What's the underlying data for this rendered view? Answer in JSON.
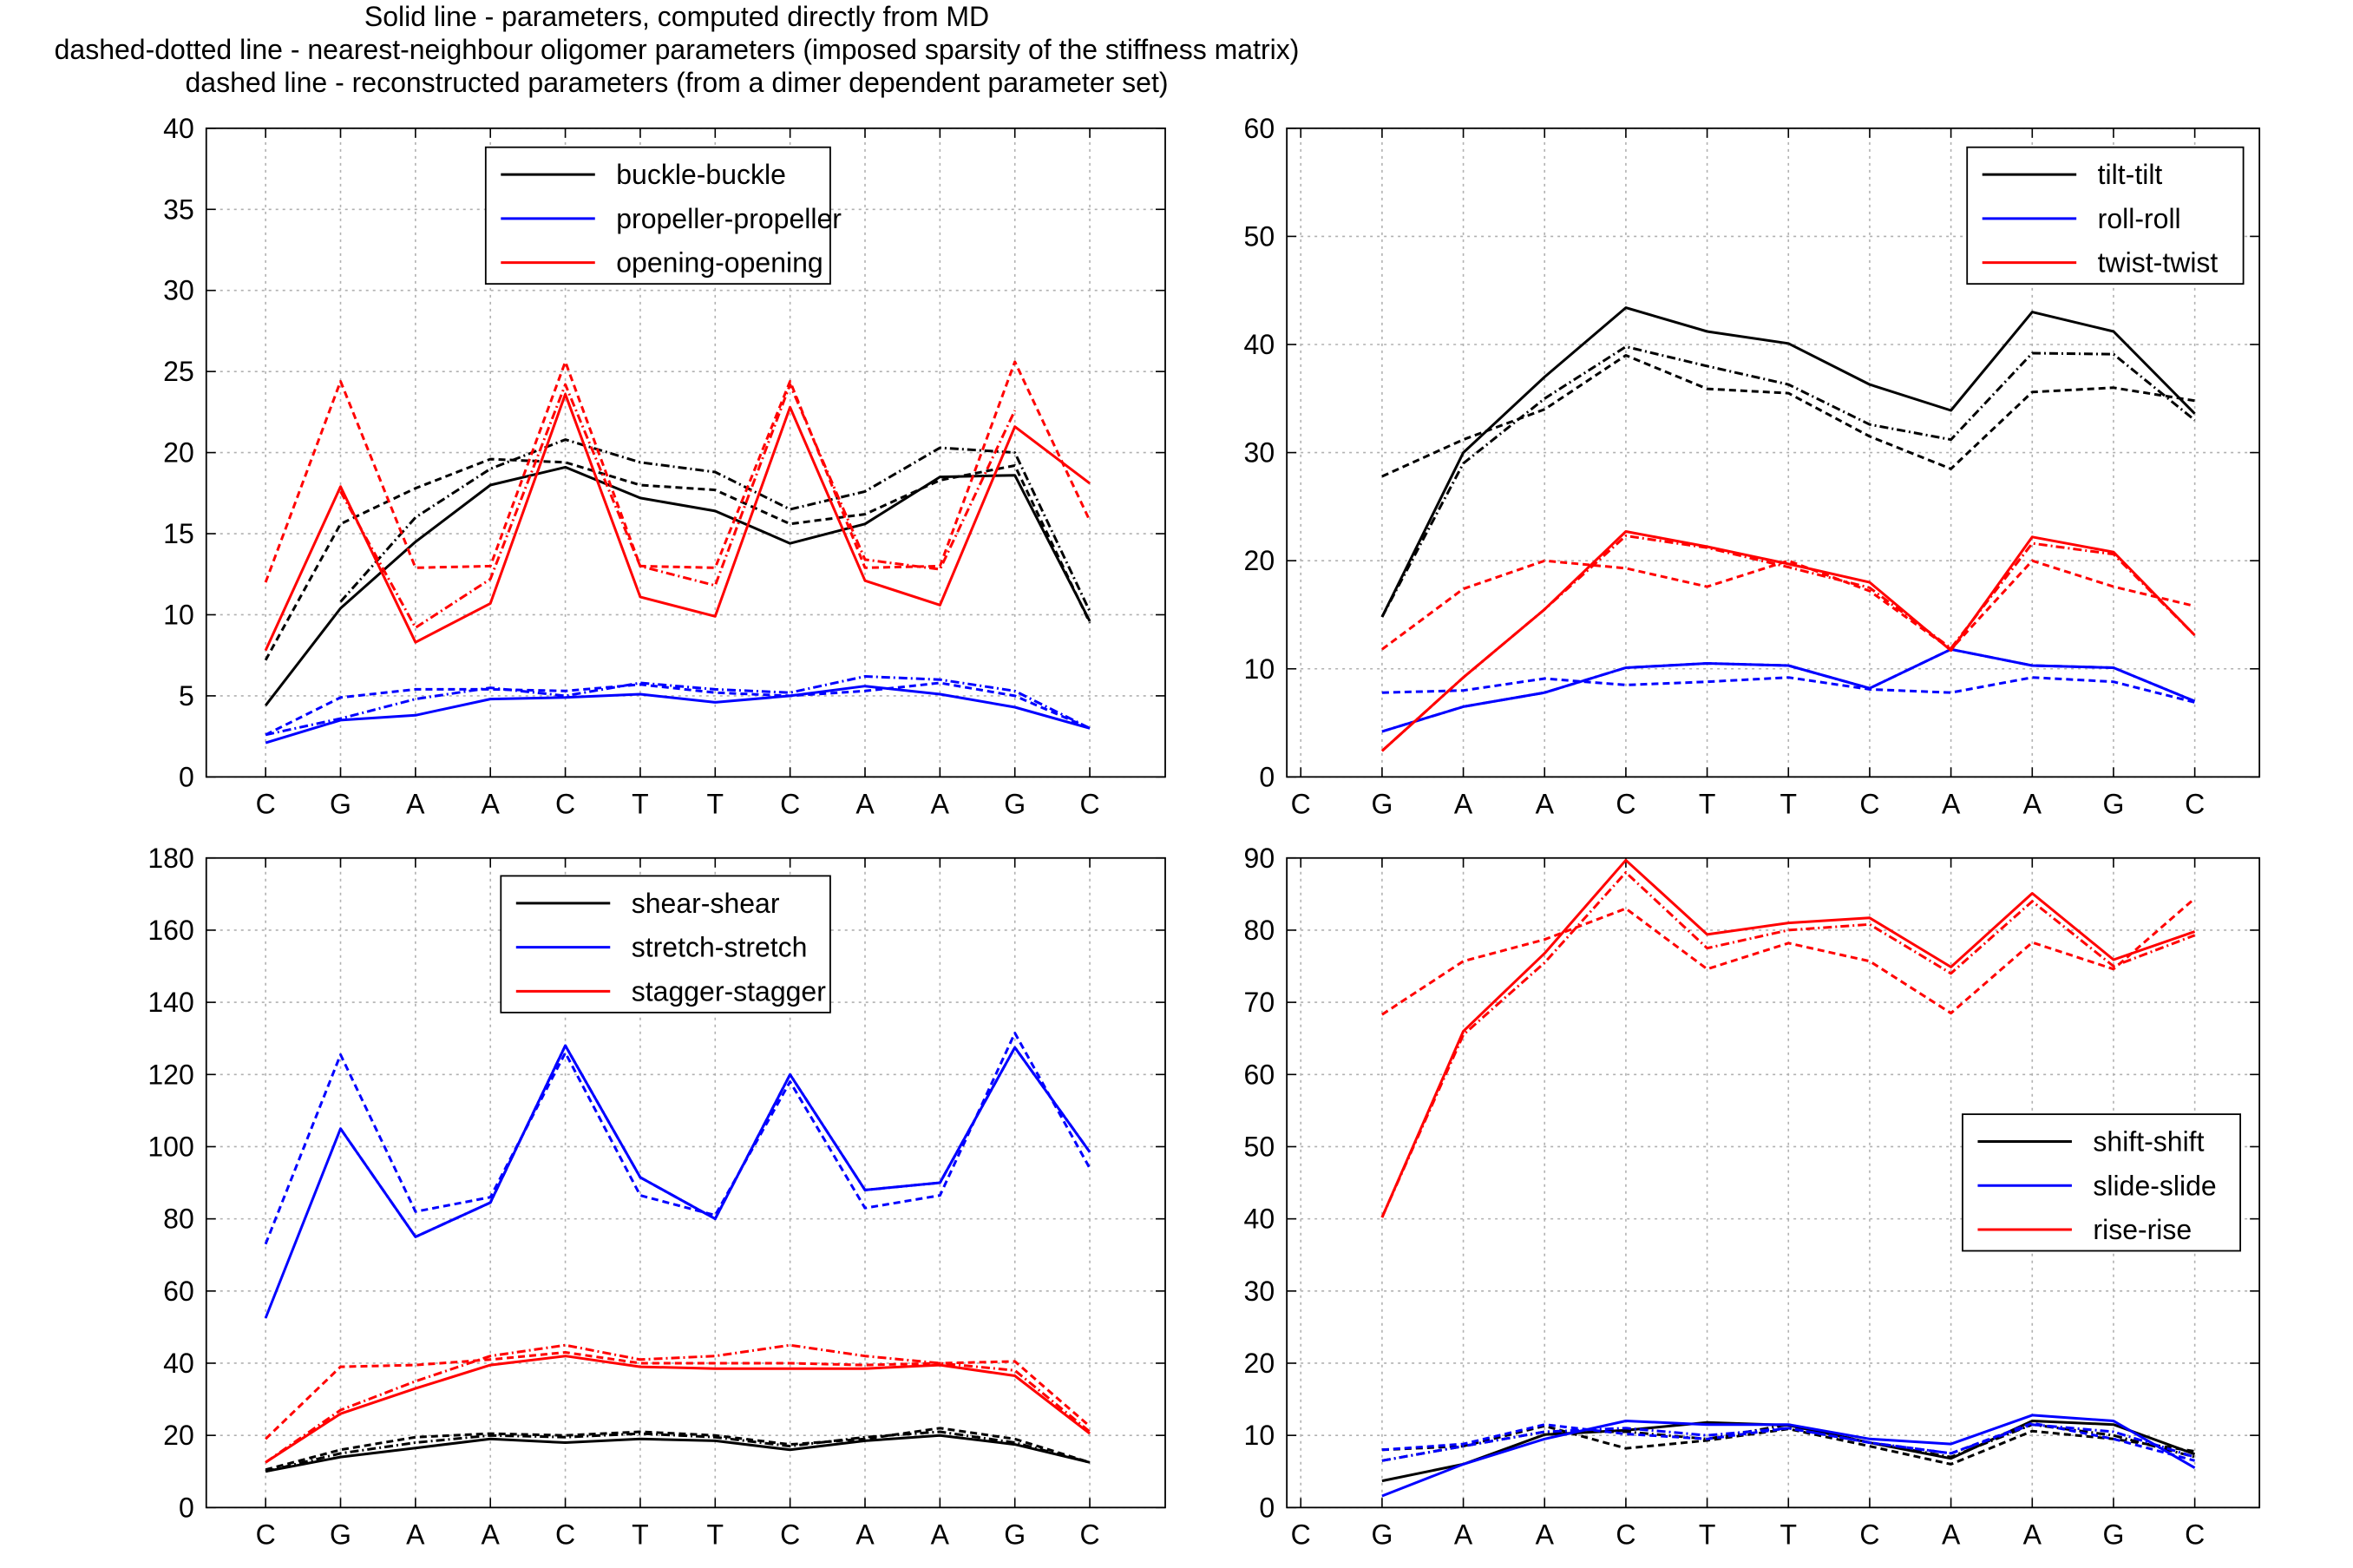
{
  "header": {
    "lines": [
      "Solid line - parameters, computed directly from MD",
      "dashed-dotted line - nearest-neighbour oligomer parameters (imposed sparsity of the stiffness matrix)",
      "dashed line - reconstructed parameters (from a dimer dependent parameter set)"
    ]
  },
  "style": {
    "line_styles": {
      "md": "solid",
      "oligomer": "dashdot",
      "reconstructed": "dashed"
    },
    "colors": {
      "black": "#000000",
      "blue": "#0000ff",
      "red": "#ff0000",
      "grid": "#b0b0b0"
    }
  },
  "chart_data": [
    {
      "type": "line",
      "title": "",
      "xlabel": "",
      "ylabel": "",
      "categories": [
        "C",
        "G",
        "A",
        "A",
        "C",
        "T",
        "T",
        "C",
        "A",
        "A",
        "G",
        "C"
      ],
      "ylim": [
        0,
        40
      ],
      "yticks": [
        0,
        5,
        10,
        15,
        20,
        25,
        30,
        35,
        40
      ],
      "grid": true,
      "legend_placement": "top-center",
      "legend": [
        {
          "name": "buckle-buckle",
          "color": "#000000"
        },
        {
          "name": "propeller-propeller",
          "color": "#0000ff"
        },
        {
          "name": "opening-opening",
          "color": "#ff0000"
        }
      ],
      "series": [
        {
          "name": "buckle-buckle",
          "color": "#000000",
          "style": "solid",
          "values": [
            4.4,
            10.4,
            14.5,
            18.0,
            19.1,
            17.2,
            16.4,
            14.4,
            15.6,
            18.5,
            18.6,
            9.6
          ]
        },
        {
          "name": "buckle-buckle",
          "color": "#000000",
          "style": "dashdot",
          "values": [
            null,
            10.8,
            16.0,
            19.0,
            20.8,
            19.4,
            18.8,
            16.5,
            17.6,
            20.3,
            20.0,
            10.2
          ]
        },
        {
          "name": "buckle-buckle",
          "color": "#000000",
          "style": "dashed",
          "values": [
            7.2,
            15.6,
            17.8,
            19.6,
            19.4,
            18.0,
            17.7,
            15.6,
            16.2,
            18.3,
            19.2,
            9.5
          ]
        },
        {
          "name": "propeller-propeller",
          "color": "#0000ff",
          "style": "solid",
          "values": [
            2.1,
            3.5,
            3.8,
            4.8,
            4.9,
            5.1,
            4.6,
            5.0,
            5.6,
            5.1,
            4.3,
            3.0
          ]
        },
        {
          "name": "propeller-propeller",
          "color": "#0000ff",
          "style": "dashdot",
          "values": [
            2.6,
            3.6,
            4.8,
            5.5,
            5.0,
            5.8,
            5.4,
            5.2,
            6.2,
            6.0,
            5.3,
            3.0
          ]
        },
        {
          "name": "propeller-propeller",
          "color": "#0000ff",
          "style": "dashed",
          "values": [
            2.6,
            4.9,
            5.4,
            5.4,
            5.3,
            5.7,
            5.2,
            5.0,
            5.3,
            5.8,
            5.0,
            3.0
          ]
        },
        {
          "name": "opening-opening",
          "color": "#ff0000",
          "style": "solid",
          "values": [
            7.8,
            17.9,
            8.3,
            10.7,
            23.6,
            11.1,
            9.9,
            22.8,
            12.1,
            10.6,
            21.6,
            18.1
          ]
        },
        {
          "name": "opening-opening",
          "color": "#ff0000",
          "style": "dashdot",
          "values": [
            null,
            17.6,
            9.2,
            12.2,
            24.2,
            13.0,
            11.8,
            24.2,
            13.4,
            12.8,
            22.6,
            null
          ]
        },
        {
          "name": "opening-opening",
          "color": "#ff0000",
          "style": "dashed",
          "values": [
            12.0,
            24.4,
            12.9,
            13.0,
            25.6,
            13.0,
            12.9,
            24.4,
            12.9,
            13.0,
            25.6,
            15.8
          ]
        }
      ]
    },
    {
      "type": "line",
      "title": "",
      "xlabel": "",
      "ylabel": "",
      "categories": [
        "C",
        "G",
        "A",
        "A",
        "C",
        "T",
        "T",
        "C",
        "A",
        "A",
        "G",
        "C"
      ],
      "ylim": [
        0,
        60
      ],
      "yticks": [
        0,
        10,
        20,
        30,
        40,
        50,
        60
      ],
      "grid": true,
      "legend_placement": "top-right",
      "legend": [
        {
          "name": "tilt-tilt",
          "color": "#000000"
        },
        {
          "name": "roll-roll",
          "color": "#0000ff"
        },
        {
          "name": "twist-twist",
          "color": "#ff0000"
        }
      ],
      "series": [
        {
          "name": "tilt-tilt",
          "color": "#000000",
          "style": "solid",
          "values": [
            null,
            14.8,
            30.0,
            37.0,
            43.4,
            41.2,
            40.1,
            36.3,
            33.9,
            43.0,
            41.2,
            33.6
          ]
        },
        {
          "name": "tilt-tilt",
          "color": "#000000",
          "style": "dashdot",
          "values": [
            null,
            14.8,
            29.0,
            35.0,
            39.8,
            38.0,
            36.3,
            32.6,
            31.2,
            39.2,
            39.1,
            33.0
          ]
        },
        {
          "name": "tilt-tilt",
          "color": "#000000",
          "style": "dashed",
          "values": [
            null,
            27.8,
            31.2,
            34.0,
            39.0,
            35.9,
            35.5,
            31.5,
            28.5,
            35.6,
            36.0,
            34.8
          ]
        },
        {
          "name": "roll-roll",
          "color": "#0000ff",
          "style": "solid",
          "values": [
            null,
            4.2,
            6.5,
            7.8,
            10.1,
            10.5,
            10.3,
            8.2,
            11.8,
            10.3,
            10.1,
            7.0
          ]
        },
        {
          "name": "roll-roll",
          "color": "#0000ff",
          "style": "dashdot",
          "values": [
            null,
            4.2,
            6.5,
            7.8,
            10.1,
            10.5,
            10.3,
            8.2,
            11.8,
            10.3,
            10.1,
            7.0
          ]
        },
        {
          "name": "roll-roll",
          "color": "#0000ff",
          "style": "dashed",
          "values": [
            null,
            7.8,
            8.0,
            9.1,
            8.5,
            8.8,
            9.2,
            8.1,
            7.8,
            9.2,
            8.8,
            6.9
          ]
        },
        {
          "name": "twist-twist",
          "color": "#ff0000",
          "style": "solid",
          "values": [
            null,
            2.4,
            9.2,
            15.5,
            22.7,
            21.3,
            19.7,
            18.0,
            11.7,
            22.2,
            20.8,
            13.1
          ]
        },
        {
          "name": "twist-twist",
          "color": "#ff0000",
          "style": "dashdot",
          "values": [
            null,
            2.4,
            9.2,
            15.5,
            22.3,
            21.2,
            19.4,
            17.5,
            11.9,
            21.6,
            20.6,
            13.1
          ]
        },
        {
          "name": "twist-twist",
          "color": "#ff0000",
          "style": "dashed",
          "values": [
            null,
            11.8,
            17.4,
            20.0,
            19.3,
            17.6,
            20.0,
            17.2,
            11.8,
            20.0,
            17.6,
            15.8
          ]
        }
      ]
    },
    {
      "type": "line",
      "title": "",
      "xlabel": "",
      "ylabel": "",
      "categories": [
        "C",
        "G",
        "A",
        "A",
        "C",
        "T",
        "T",
        "C",
        "A",
        "A",
        "G",
        "C"
      ],
      "ylim": [
        0,
        180
      ],
      "yticks": [
        0,
        20,
        40,
        60,
        80,
        100,
        120,
        140,
        160,
        180
      ],
      "grid": true,
      "legend_placement": "top-center",
      "legend": [
        {
          "name": "shear-shear",
          "color": "#000000"
        },
        {
          "name": "stretch-stretch",
          "color": "#0000ff"
        },
        {
          "name": "stagger-stagger",
          "color": "#ff0000"
        }
      ],
      "series": [
        {
          "name": "shear-shear",
          "color": "#000000",
          "style": "solid",
          "values": [
            10,
            14,
            16.5,
            19,
            18,
            19,
            18.5,
            16,
            18.5,
            20,
            17.5,
            12.5
          ]
        },
        {
          "name": "shear-shear",
          "color": "#000000",
          "style": "dashdot",
          "values": [
            10,
            15,
            18,
            20,
            19.5,
            20.5,
            19.5,
            17,
            19.5,
            21,
            18,
            12.5
          ]
        },
        {
          "name": "shear-shear",
          "color": "#000000",
          "style": "dashed",
          "values": [
            10.5,
            16,
            19.5,
            20.5,
            20,
            21,
            20,
            17.5,
            19,
            22,
            19,
            12.5
          ]
        },
        {
          "name": "stretch-stretch",
          "color": "#0000ff",
          "style": "solid",
          "values": [
            52.5,
            105,
            75,
            84.5,
            128,
            91.5,
            80,
            120,
            88,
            90,
            127.5,
            98.5
          ]
        },
        {
          "name": "stretch-stretch",
          "color": "#0000ff",
          "style": "dashdot",
          "values": [
            null,
            105,
            75,
            84.5,
            128,
            91.5,
            80,
            120,
            88,
            90,
            127.5,
            98.5
          ]
        },
        {
          "name": "stretch-stretch",
          "color": "#0000ff",
          "style": "dashed",
          "values": [
            73,
            125.5,
            82,
            86,
            126,
            86.5,
            81,
            118,
            83,
            86.5,
            131.5,
            94
          ]
        },
        {
          "name": "stagger-stagger",
          "color": "#ff0000",
          "style": "solid",
          "values": [
            12.5,
            26,
            33,
            39.5,
            42,
            39,
            38.5,
            38.5,
            38.5,
            39.5,
            36.5,
            20.5
          ]
        },
        {
          "name": "stagger-stagger",
          "color": "#ff0000",
          "style": "dashdot",
          "values": [
            12.5,
            27,
            35,
            42,
            45,
            41,
            42,
            45,
            42,
            40,
            38,
            21
          ]
        },
        {
          "name": "stagger-stagger",
          "color": "#ff0000",
          "style": "dashed",
          "values": [
            19,
            39,
            39.5,
            41,
            43,
            40,
            40,
            40,
            39.5,
            40,
            40.5,
            22.5
          ]
        }
      ]
    },
    {
      "type": "line",
      "title": "",
      "xlabel": "",
      "ylabel": "",
      "categories": [
        "C",
        "G",
        "A",
        "A",
        "C",
        "T",
        "T",
        "C",
        "A",
        "A",
        "G",
        "C"
      ],
      "ylim": [
        0,
        90
      ],
      "yticks": [
        0,
        10,
        20,
        30,
        40,
        50,
        60,
        70,
        80,
        90
      ],
      "grid": true,
      "legend_placement": "middle-right",
      "legend": [
        {
          "name": "shift-shift",
          "color": "#000000"
        },
        {
          "name": "slide-slide",
          "color": "#0000ff"
        },
        {
          "name": "rise-rise",
          "color": "#ff0000"
        }
      ],
      "series": [
        {
          "name": "shift-shift",
          "color": "#000000",
          "style": "solid",
          "values": [
            null,
            3.7,
            6.0,
            10.1,
            10.7,
            11.8,
            11.4,
            9.0,
            6.8,
            12.0,
            11.5,
            7.4
          ]
        },
        {
          "name": "shift-shift",
          "color": "#000000",
          "style": "dashdot",
          "values": [
            null,
            6.5,
            8.5,
            10.5,
            10.5,
            9.5,
            11.5,
            9.0,
            7.0,
            11.5,
            10.0,
            7.0
          ]
        },
        {
          "name": "shift-shift",
          "color": "#000000",
          "style": "dashed",
          "values": [
            null,
            8.0,
            8.5,
            11.3,
            8.2,
            9.3,
            10.9,
            8.5,
            6.0,
            10.6,
            9.5,
            7.8
          ]
        },
        {
          "name": "slide-slide",
          "color": "#0000ff",
          "style": "solid",
          "values": [
            null,
            1.6,
            6.0,
            9.5,
            12.0,
            11.5,
            11.5,
            9.5,
            8.8,
            12.8,
            12.0,
            5.5
          ]
        },
        {
          "name": "slide-slide",
          "color": "#0000ff",
          "style": "dashdot",
          "values": [
            null,
            6.5,
            8.5,
            10.5,
            11.0,
            10.0,
            11.0,
            9.0,
            7.5,
            11.5,
            10.5,
            7.0
          ]
        },
        {
          "name": "slide-slide",
          "color": "#0000ff",
          "style": "dashed",
          "values": [
            null,
            8.0,
            8.8,
            11.5,
            10.2,
            9.5,
            11.0,
            9.0,
            7.5,
            11.7,
            9.5,
            6.5
          ]
        },
        {
          "name": "rise-rise",
          "color": "#ff0000",
          "style": "solid",
          "values": [
            null,
            40.2,
            66.0,
            76.8,
            89.7,
            79.4,
            81.0,
            81.7,
            74.9,
            85.1,
            75.9,
            79.8
          ]
        },
        {
          "name": "rise-rise",
          "color": "#ff0000",
          "style": "dashdot",
          "values": [
            null,
            40.2,
            65.5,
            75.5,
            88.0,
            77.5,
            80.0,
            80.8,
            74.0,
            84.0,
            75.0,
            79.3
          ]
        },
        {
          "name": "rise-rise",
          "color": "#ff0000",
          "style": "dashed",
          "values": [
            null,
            68.3,
            75.7,
            78.7,
            83.0,
            74.6,
            78.2,
            75.7,
            68.5,
            78.3,
            74.6,
            84.4
          ]
        }
      ]
    }
  ]
}
